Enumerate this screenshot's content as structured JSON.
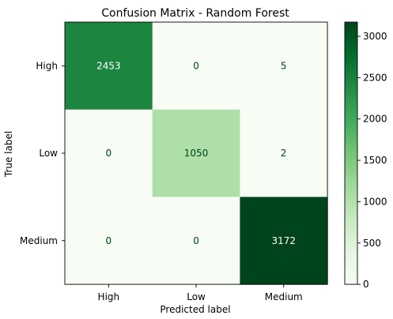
{
  "chart_data": {
    "type": "heatmap",
    "title": "Confusion Matrix - Random Forest",
    "xlabel": "Predicted label",
    "ylabel": "True label",
    "x_categories": [
      "High",
      "Low",
      "Medium"
    ],
    "y_categories": [
      "High",
      "Low",
      "Medium"
    ],
    "values": [
      [
        2453,
        0,
        5
      ],
      [
        0,
        1050,
        2
      ],
      [
        0,
        0,
        3172
      ]
    ],
    "colormap": "Greens",
    "color_range": [
      0,
      3172
    ],
    "colorbar": {
      "ticks": [
        0,
        500,
        1000,
        1500,
        2000,
        2500,
        3000
      ],
      "tick_labels": [
        "0",
        "500",
        "1000",
        "1500",
        "2000",
        "2500",
        "3000"
      ]
    },
    "cell_text_colors": {
      "dark_bg": "#ffffff",
      "light_bg": "#00441b"
    },
    "grid": false
  }
}
